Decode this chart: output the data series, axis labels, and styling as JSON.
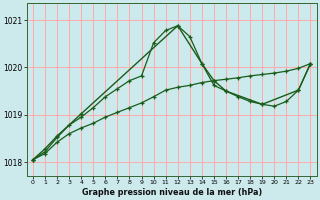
{
  "title": "Graphe pression niveau de la mer (hPa)",
  "background_color": "#cce9ec",
  "grid_color": "#ffaaaa",
  "line_color": "#1a5c1a",
  "border_color": "#336633",
  "x_ticks": [
    0,
    1,
    2,
    3,
    4,
    5,
    6,
    7,
    8,
    9,
    10,
    11,
    12,
    13,
    14,
    15,
    16,
    17,
    18,
    19,
    20,
    21,
    22,
    23
  ],
  "ylim": [
    1017.7,
    1021.35
  ],
  "yticks": [
    1018,
    1019,
    1020,
    1021
  ],
  "line1_x": [
    0,
    1,
    2,
    3,
    4,
    5,
    6,
    7,
    8,
    9,
    10,
    11,
    12,
    13,
    14,
    15,
    16,
    17,
    18,
    19,
    20,
    21,
    22,
    23
  ],
  "line1_y": [
    1018.05,
    1018.22,
    1018.52,
    1018.78,
    1018.95,
    1019.15,
    1019.38,
    1019.55,
    1019.72,
    1019.82,
    1020.52,
    1020.78,
    1020.88,
    1020.65,
    1020.08,
    1019.62,
    1019.5,
    1019.38,
    1019.28,
    1019.22,
    1019.18,
    1019.28,
    1019.52,
    1020.08
  ],
  "line2_x": [
    0,
    1,
    2,
    3,
    4,
    5,
    6,
    7,
    8,
    9,
    10,
    11,
    12,
    13,
    14,
    15,
    16,
    17,
    18,
    19,
    20,
    21,
    22,
    23
  ],
  "line2_y": [
    1018.05,
    1018.18,
    1018.42,
    1018.6,
    1018.72,
    1018.82,
    1018.95,
    1019.05,
    1019.15,
    1019.25,
    1019.38,
    1019.52,
    1019.58,
    1019.62,
    1019.68,
    1019.72,
    1019.75,
    1019.78,
    1019.82,
    1019.85,
    1019.88,
    1019.92,
    1019.98,
    1020.08
  ],
  "line3_x": [
    0,
    1,
    2,
    4,
    12,
    14,
    15,
    16,
    19,
    22,
    23
  ],
  "line3_y": [
    1018.05,
    1018.28,
    1018.55,
    1019.02,
    1020.88,
    1020.08,
    1019.72,
    1019.5,
    1019.22,
    1019.52,
    1020.08
  ]
}
